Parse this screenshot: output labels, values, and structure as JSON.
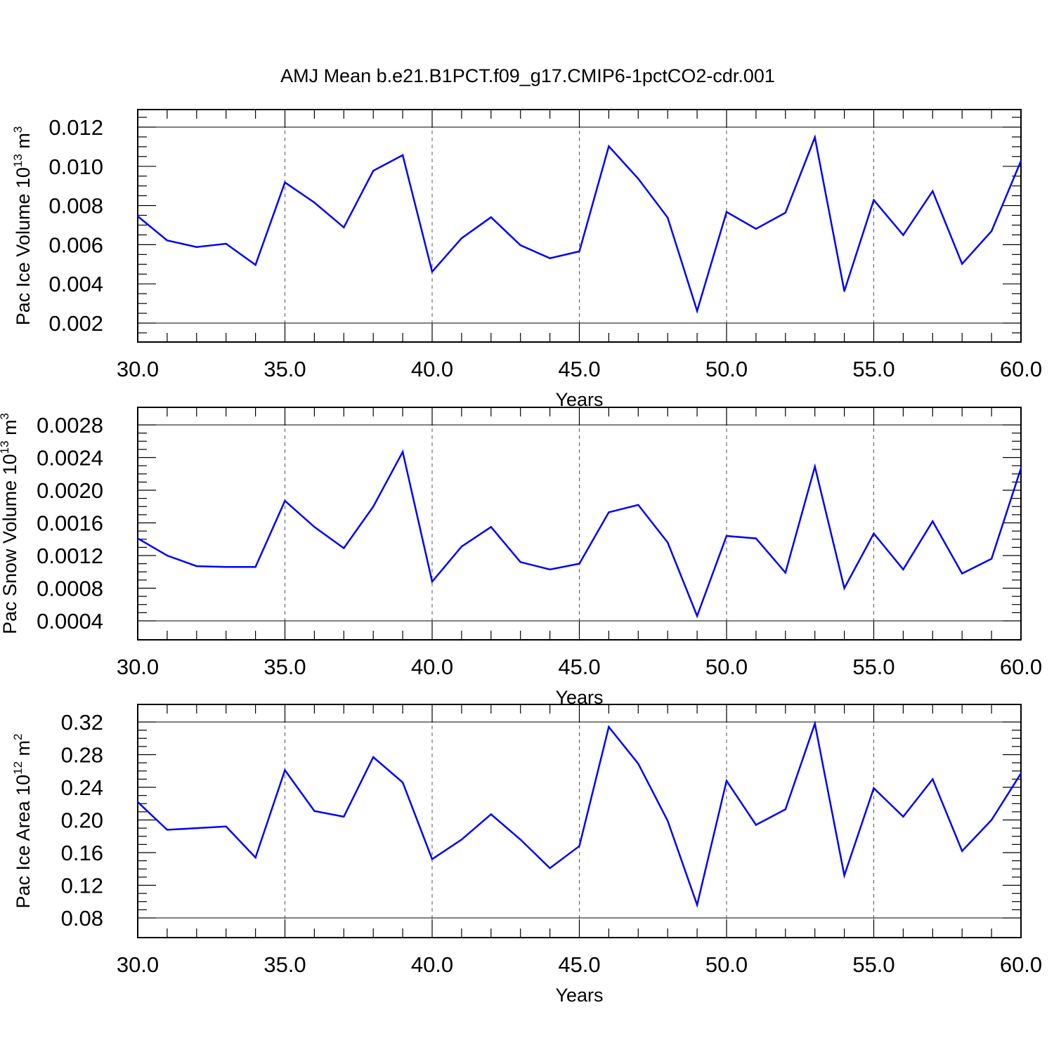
{
  "title": "AMJ Mean b.e21.B1PCT.f09_g17.CMIP6-1pctCO2-cdr.001",
  "colors": {
    "line": "#0000ff",
    "axis": "#000000",
    "gridline": "#555555"
  },
  "chart_data": [
    {
      "type": "line",
      "ylabel": "Pac Ice Volume 10",
      "ylabel_exp": "13",
      "ylabel_unit": " m",
      "ylabel_unit_exp": "3",
      "xlabel": "Years",
      "xlim": [
        30,
        60
      ],
      "ylim": [
        0.0015,
        0.0125
      ],
      "xticks": [
        30,
        35,
        40,
        45,
        50,
        55,
        60
      ],
      "xtick_labels": [
        "30.0",
        "35.0",
        "40.0",
        "45.0",
        "50.0",
        "55.0",
        "60.0"
      ],
      "yticks": [
        0.002,
        0.004,
        0.006,
        0.008,
        0.01,
        0.012
      ],
      "ytick_labels": [
        "0.002",
        "0.004",
        "0.006",
        "0.008",
        "0.010",
        "0.012"
      ],
      "y_minor_step": 0.0005,
      "grid": "dashed vertical at major x ticks",
      "x": [
        30,
        31,
        32,
        33,
        34,
        35,
        36,
        37,
        38,
        39,
        40,
        41,
        42,
        43,
        44,
        45,
        46,
        47,
        48,
        49,
        50,
        51,
        52,
        53,
        54,
        55,
        56,
        57,
        58,
        59,
        60
      ],
      "values": [
        0.00745,
        0.00622,
        0.00588,
        0.00605,
        0.00497,
        0.00918,
        0.00815,
        0.00688,
        0.00977,
        0.01057,
        0.00462,
        0.00633,
        0.0074,
        0.00597,
        0.00531,
        0.00566,
        0.01102,
        0.00937,
        0.00738,
        0.00262,
        0.00767,
        0.00681,
        0.00763,
        0.01148,
        0.00363,
        0.00828,
        0.00649,
        0.00873,
        0.00502,
        0.00669,
        0.01028
      ]
    },
    {
      "type": "line",
      "ylabel": "Pac Snow Volume 10",
      "ylabel_exp": "13",
      "ylabel_unit": " m",
      "ylabel_unit_exp": "3",
      "xlabel": "Years",
      "xlim": [
        30,
        60
      ],
      "ylim": [
        0.0004,
        0.0028
      ],
      "xticks": [
        30,
        35,
        40,
        45,
        50,
        55,
        60
      ],
      "xtick_labels": [
        "30.0",
        "35.0",
        "40.0",
        "45.0",
        "50.0",
        "55.0",
        "60.0"
      ],
      "yticks": [
        0.0004,
        0.0008,
        0.0012,
        0.0016,
        0.002,
        0.0024,
        0.0028
      ],
      "ytick_labels": [
        "0.0004",
        "0.0008",
        "0.0012",
        "0.0016",
        "0.0020",
        "0.0024",
        "0.0028"
      ],
      "y_minor_step": 0.0001,
      "grid": "dashed vertical at major x ticks",
      "x": [
        30,
        31,
        32,
        33,
        34,
        35,
        36,
        37,
        38,
        39,
        40,
        41,
        42,
        43,
        44,
        45,
        46,
        47,
        48,
        49,
        50,
        51,
        52,
        53,
        54,
        55,
        56,
        57,
        58,
        59,
        60
      ],
      "values": [
        0.00141,
        0.0012,
        0.00107,
        0.00106,
        0.00106,
        0.00187,
        0.00155,
        0.00129,
        0.0018,
        0.00247,
        0.00088,
        0.00131,
        0.00155,
        0.00112,
        0.00103,
        0.0011,
        0.00173,
        0.00182,
        0.00136,
        0.00046,
        0.00144,
        0.00141,
        0.00099,
        0.00229,
        0.0008,
        0.00147,
        0.00103,
        0.00162,
        0.00098,
        0.00116,
        0.00227
      ]
    },
    {
      "type": "line",
      "ylabel": "Pac Ice Area 10",
      "ylabel_exp": "12",
      "ylabel_unit": " m",
      "ylabel_unit_exp": "2",
      "xlabel": "Years",
      "xlim": [
        30,
        60
      ],
      "ylim": [
        0.08,
        0.32
      ],
      "xticks": [
        30,
        35,
        40,
        45,
        50,
        55,
        60
      ],
      "xtick_labels": [
        "30.0",
        "35.0",
        "40.0",
        "45.0",
        "50.0",
        "55.0",
        "60.0"
      ],
      "yticks": [
        0.08,
        0.12,
        0.16,
        0.2,
        0.24,
        0.28,
        0.32
      ],
      "ytick_labels": [
        "0.08",
        "0.12",
        "0.16",
        "0.20",
        "0.24",
        "0.28",
        "0.32"
      ],
      "y_minor_step": 0.01,
      "grid": "dashed vertical at major x ticks",
      "x": [
        30,
        31,
        32,
        33,
        34,
        35,
        36,
        37,
        38,
        39,
        40,
        41,
        42,
        43,
        44,
        45,
        46,
        47,
        48,
        49,
        50,
        51,
        52,
        53,
        54,
        55,
        56,
        57,
        58,
        59,
        60
      ],
      "values": [
        0.222,
        0.188,
        0.19,
        0.192,
        0.154,
        0.261,
        0.211,
        0.204,
        0.277,
        0.246,
        0.152,
        0.176,
        0.207,
        0.176,
        0.141,
        0.168,
        0.314,
        0.269,
        0.199,
        0.096,
        0.248,
        0.194,
        0.213,
        0.318,
        0.132,
        0.239,
        0.204,
        0.25,
        0.162,
        0.2,
        0.257
      ]
    }
  ]
}
